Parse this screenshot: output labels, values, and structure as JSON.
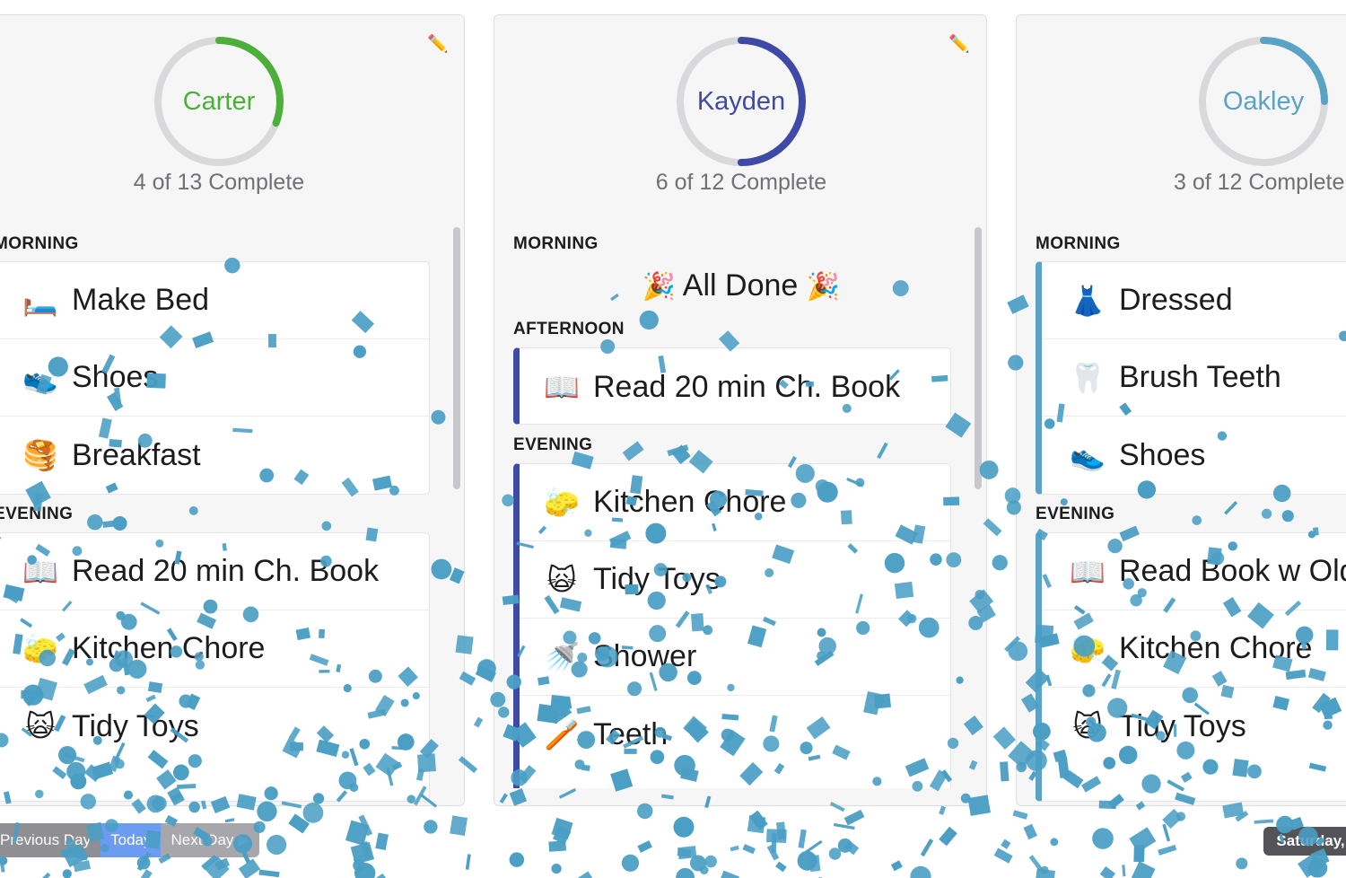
{
  "children": [
    {
      "name": "Carter",
      "summary": "4 of 13 Complete",
      "progress": 0.3077,
      "color": "#4caf3a",
      "edit_icon": "pencil-icon",
      "sections": [
        {
          "title": "MORNING",
          "tasks": [
            {
              "emoji": "🛏️",
              "icon": "bed-icon",
              "label": "Make Bed"
            },
            {
              "emoji": "👟",
              "icon": "shoe-icon",
              "label": "Shoes"
            },
            {
              "emoji": "🥞",
              "icon": "pancakes-icon",
              "label": "Breakfast"
            }
          ]
        },
        {
          "title": "EVENING",
          "tasks": [
            {
              "emoji": "📖",
              "icon": "book-icon",
              "label": "Read 20 min Ch. Book"
            },
            {
              "emoji": "🧽",
              "icon": "sponge-icon",
              "label": "Kitchen Chore"
            },
            {
              "emoji": "🙀",
              "icon": "screaming-cat-icon",
              "label": "Tidy Toys"
            }
          ]
        }
      ]
    },
    {
      "name": "Kayden",
      "summary": "6 of 12 Complete",
      "progress": 0.5,
      "color": "#3f4aa6",
      "edit_icon": "pencil-icon",
      "sections": [
        {
          "title": "MORNING",
          "all_done": "All Done",
          "all_done_emoji": "🎉",
          "tasks": []
        },
        {
          "title": "AFTERNOON",
          "tasks": [
            {
              "emoji": "📖",
              "icon": "book-icon",
              "label": "Read 20 min Ch. Book"
            }
          ]
        },
        {
          "title": "EVENING",
          "tasks": [
            {
              "emoji": "🧽",
              "icon": "sponge-icon",
              "label": "Kitchen Chore"
            },
            {
              "emoji": "🙀",
              "icon": "screaming-cat-icon",
              "label": "Tidy Toys"
            },
            {
              "emoji": "🚿",
              "icon": "shower-icon",
              "label": "Shower"
            },
            {
              "emoji": "🪥",
              "icon": "toothbrush-icon",
              "label": "Teeth"
            }
          ]
        }
      ]
    },
    {
      "name": "Oakley",
      "summary": "3 of 12 Complete",
      "progress": 0.25,
      "color": "#5aa3c4",
      "sections": [
        {
          "title": "MORNING",
          "tasks": [
            {
              "emoji": "👗",
              "icon": "dress-icon",
              "label": "Dressed"
            },
            {
              "emoji": "🦷",
              "icon": "tooth-icon",
              "label": "Brush Teeth"
            },
            {
              "emoji": "👟",
              "icon": "shoe-icon",
              "label": "Shoes"
            }
          ]
        },
        {
          "title": "EVENING",
          "tasks": [
            {
              "emoji": "📖",
              "icon": "book-icon",
              "label": "Read Book w Old"
            },
            {
              "emoji": "🧽",
              "icon": "sponge-icon",
              "label": "Kitchen Chore"
            },
            {
              "emoji": "🙀",
              "icon": "screaming-cat-icon",
              "label": "Tidy Toys"
            }
          ]
        }
      ]
    }
  ],
  "nav": {
    "previous_label": "Previous Day",
    "today_label": "Today",
    "next_label": "Next Day ▶"
  },
  "date_label": "Saturday, No",
  "colors": {
    "confetti": "#4a9ec4",
    "ring_track": "#d9d9dc"
  }
}
